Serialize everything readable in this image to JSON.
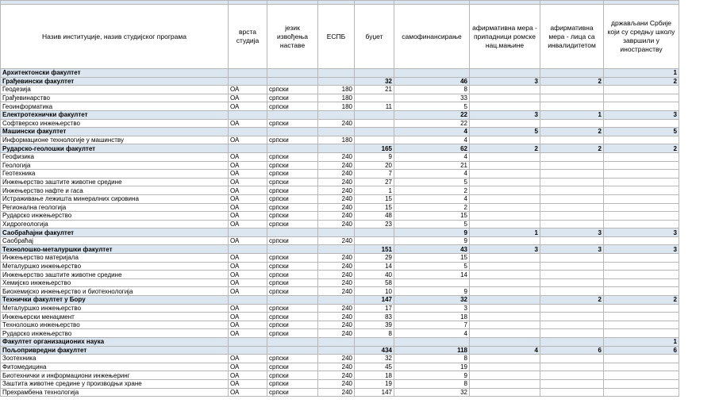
{
  "table": {
    "header": [
      "Назив институције, назив студијског програма",
      "врста студија",
      "језик извођења наставе",
      "ЕСПБ",
      "буџет",
      "самофинансирање",
      "афирмативна мера - припадници ромске нац.мањине",
      "афирмативна мера - лица са инвалидитетом",
      "држављани Србије који су средњу школу завршили у иностранству"
    ],
    "rows": [
      {
        "kind": "faculty",
        "cells": [
          "Архитектонски факултет",
          null,
          null,
          null,
          null,
          null,
          null,
          null,
          1
        ]
      },
      {
        "kind": "faculty",
        "cells": [
          "Грађевински факултет",
          null,
          null,
          null,
          32,
          46,
          3,
          2,
          2
        ]
      },
      {
        "kind": "program",
        "cells": [
          "Геодезија",
          "ОА",
          "српски",
          180,
          21,
          8,
          null,
          null,
          null
        ]
      },
      {
        "kind": "program",
        "cells": [
          "Грађевинарство",
          "ОА",
          "српски",
          180,
          null,
          33,
          null,
          null,
          null
        ]
      },
      {
        "kind": "program",
        "cells": [
          "Геоинформатика",
          "ОА",
          "српски",
          180,
          11,
          5,
          null,
          null,
          null
        ]
      },
      {
        "kind": "faculty",
        "cells": [
          "Електротехнички факултет",
          null,
          null,
          null,
          null,
          22,
          3,
          1,
          3
        ]
      },
      {
        "kind": "program",
        "cells": [
          "Софтверско инжењерство",
          "ОА",
          "српски",
          240,
          null,
          22,
          null,
          null,
          null
        ]
      },
      {
        "kind": "faculty",
        "cells": [
          "Машински факултет",
          null,
          null,
          null,
          null,
          4,
          5,
          2,
          5
        ]
      },
      {
        "kind": "program",
        "cells": [
          "Информационе технологије у машинству",
          "ОА",
          "српски",
          180,
          null,
          4,
          null,
          null,
          null
        ]
      },
      {
        "kind": "faculty",
        "cells": [
          "Рударско-геолошки факултет",
          null,
          null,
          null,
          165,
          62,
          2,
          2,
          2
        ]
      },
      {
        "kind": "program",
        "cells": [
          "Геофизика",
          "ОА",
          "српски",
          240,
          9,
          4,
          null,
          null,
          null
        ]
      },
      {
        "kind": "program",
        "cells": [
          "Геологија",
          "ОА",
          "српски",
          240,
          20,
          21,
          null,
          null,
          null
        ]
      },
      {
        "kind": "program",
        "cells": [
          "Геотехника",
          "ОА",
          "српски",
          240,
          7,
          4,
          null,
          null,
          null
        ]
      },
      {
        "kind": "program",
        "cells": [
          "Инжењерство заштите животне средине",
          "ОА",
          "српски",
          240,
          27,
          5,
          null,
          null,
          null
        ]
      },
      {
        "kind": "program",
        "cells": [
          "Инжењерство нафте и гаса",
          "ОА",
          "српски",
          240,
          1,
          2,
          null,
          null,
          null
        ]
      },
      {
        "kind": "program",
        "cells": [
          "Истраживање лежишта минералних сировина",
          "ОА",
          "српски",
          240,
          15,
          4,
          null,
          null,
          null
        ]
      },
      {
        "kind": "program",
        "cells": [
          "Регионална геологија",
          "ОА",
          "српски",
          240,
          15,
          2,
          null,
          null,
          null
        ]
      },
      {
        "kind": "program",
        "cells": [
          "Рударско инжењерство",
          "ОА",
          "српски",
          240,
          48,
          15,
          null,
          null,
          null
        ]
      },
      {
        "kind": "program",
        "cells": [
          "Хидрогеологија",
          "ОА",
          "српски",
          240,
          23,
          5,
          null,
          null,
          null
        ]
      },
      {
        "kind": "faculty",
        "cells": [
          "Саобраћајни факултет",
          null,
          null,
          null,
          null,
          9,
          1,
          3,
          3
        ]
      },
      {
        "kind": "program",
        "cells": [
          "Саобраћај",
          "ОА",
          "српски",
          240,
          null,
          9,
          null,
          null,
          null
        ]
      },
      {
        "kind": "faculty",
        "cells": [
          "Технолошко-металуршки факултет",
          null,
          null,
          null,
          151,
          43,
          3,
          3,
          3
        ]
      },
      {
        "kind": "program",
        "cells": [
          "Инжењерство материјала",
          "ОА",
          "српски",
          240,
          29,
          15,
          null,
          null,
          null
        ]
      },
      {
        "kind": "program",
        "cells": [
          "Металуршко инжењерство",
          "ОА",
          "српски",
          240,
          14,
          5,
          null,
          null,
          null
        ]
      },
      {
        "kind": "program",
        "cells": [
          "Инжењерство заштите животне средине",
          "ОА",
          "српски",
          240,
          40,
          14,
          null,
          null,
          null
        ]
      },
      {
        "kind": "program",
        "cells": [
          "Хемијско инжењерство",
          "ОА",
          "српски",
          240,
          58,
          null,
          null,
          null,
          null
        ]
      },
      {
        "kind": "program",
        "cells": [
          "Биохемијско инжењерство и биотехнологија",
          "ОА",
          "српски",
          240,
          10,
          9,
          null,
          null,
          null
        ]
      },
      {
        "kind": "faculty",
        "cells": [
          "Технички факултет у Бору",
          null,
          null,
          null,
          147,
          32,
          null,
          2,
          2
        ]
      },
      {
        "kind": "program",
        "cells": [
          "Металуршко инжењерство",
          "ОА",
          "српски",
          240,
          17,
          3,
          null,
          null,
          null
        ]
      },
      {
        "kind": "program",
        "cells": [
          "Инжењерски менаџмент",
          "ОА",
          "српски",
          240,
          83,
          18,
          null,
          null,
          null
        ]
      },
      {
        "kind": "program",
        "cells": [
          "Технолошко инжењерство",
          "ОА",
          "српски",
          240,
          39,
          7,
          null,
          null,
          null
        ]
      },
      {
        "kind": "program",
        "cells": [
          "Рударско инжењерство",
          "ОА",
          "српски",
          240,
          8,
          4,
          null,
          null,
          null
        ]
      },
      {
        "kind": "faculty",
        "cells": [
          "Факултет организационих наука",
          null,
          null,
          null,
          null,
          null,
          null,
          null,
          1
        ]
      },
      {
        "kind": "faculty",
        "cells": [
          "Пољопривредни факултет",
          null,
          null,
          null,
          434,
          118,
          4,
          6,
          6
        ]
      },
      {
        "kind": "program",
        "cells": [
          "Зоотехника",
          "ОА",
          "српски",
          240,
          32,
          8,
          null,
          null,
          null
        ]
      },
      {
        "kind": "program",
        "cells": [
          "Фитомедицина",
          "ОА",
          "српски",
          240,
          45,
          19,
          null,
          null,
          null
        ]
      },
      {
        "kind": "program",
        "cells": [
          "Биотехнички и информациони инжењеринг",
          "ОА",
          "српски",
          240,
          18,
          9,
          null,
          null,
          null
        ]
      },
      {
        "kind": "program",
        "cells": [
          "Заштита животне средине у производњи хране",
          "ОА",
          "српски",
          240,
          19,
          8,
          null,
          null,
          null
        ]
      },
      {
        "kind": "program",
        "cells": [
          "Прехрамбена технологија",
          "ОА",
          "српски",
          240,
          147,
          32,
          null,
          null,
          null
        ]
      }
    ]
  }
}
